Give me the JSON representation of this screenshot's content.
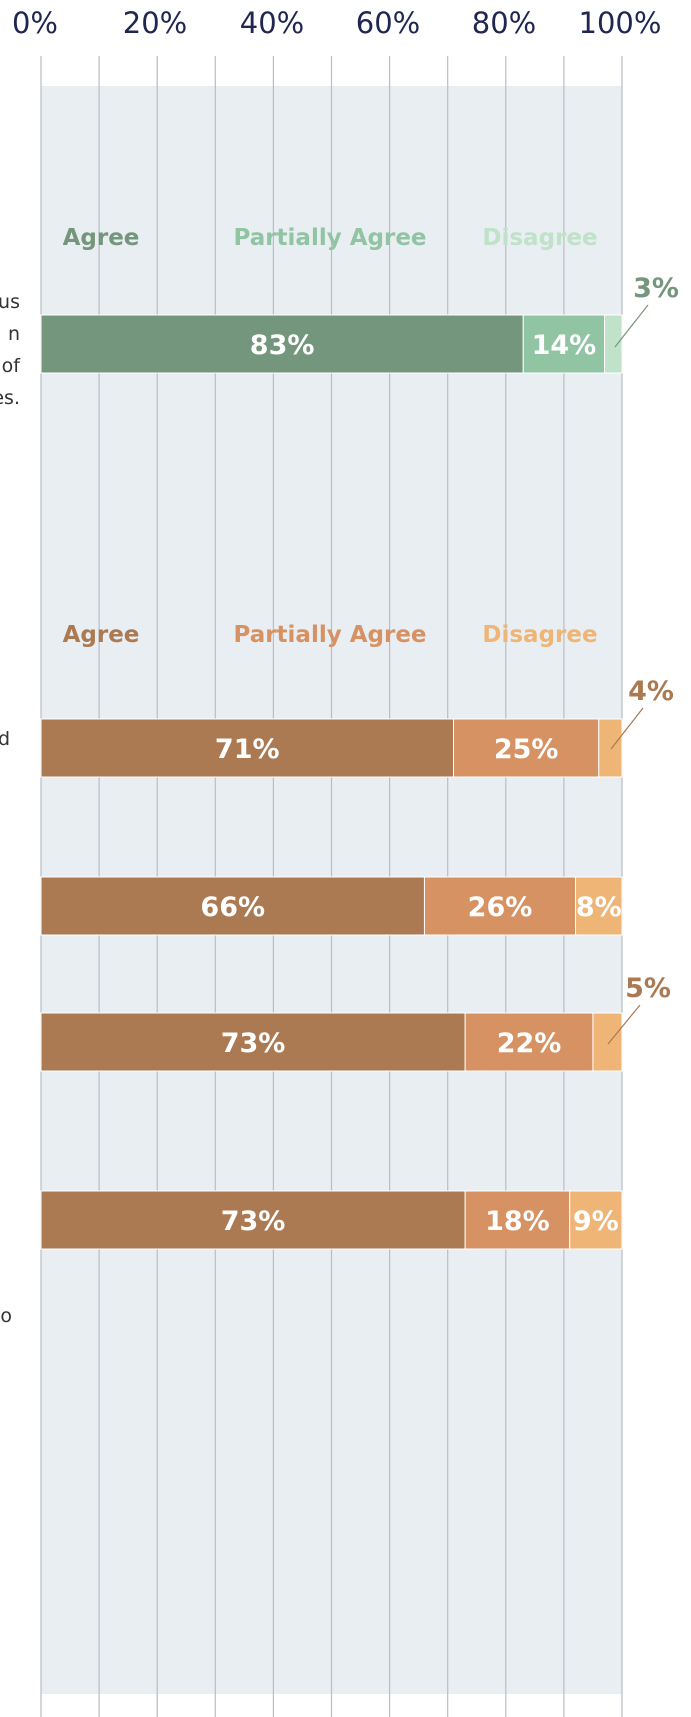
{
  "colors": {
    "panel_bg": "#e9eef2",
    "gridline": "#b8bec4",
    "axis_text": "#1f2650",
    "green_agree": "#74967c",
    "green_partial": "#90c4a2",
    "green_disagree": "#bfe2c8",
    "brown_agree": "#ab7a52",
    "brown_partial": "#d69263",
    "brown_disagree": "#efb577",
    "segment_text": "#ffffff"
  },
  "side_text_fragments": [
    {
      "id": "frag-1",
      "text": "us"
    },
    {
      "id": "frag-2",
      "text": "n"
    },
    {
      "id": "frag-3",
      "text": "of"
    },
    {
      "id": "frag-4",
      "text": "es."
    },
    {
      "id": "frag-5",
      "text": "d"
    },
    {
      "id": "frag-6",
      "text": "o"
    }
  ],
  "chart_data": {
    "type": "bar",
    "orientation": "horizontal",
    "stacked": true,
    "x_ticks": [
      "0%",
      "20%",
      "40%",
      "60%",
      "80%",
      "100%"
    ],
    "xlim": [
      0,
      100
    ],
    "grid": true,
    "title": "",
    "xlabel": "",
    "ylabel": "",
    "groups": [
      {
        "id": "group-1",
        "legend": [
          {
            "label": "Agree",
            "color": "#74967c"
          },
          {
            "label": "Partially Agree",
            "color": "#90c4a2"
          },
          {
            "label": "Disagree",
            "color": "#bfe2c8"
          }
        ],
        "rows": [
          {
            "values": [
              83,
              14,
              3
            ],
            "labels": [
              "83%",
              "14%",
              "3%"
            ]
          }
        ]
      },
      {
        "id": "group-2",
        "legend": [
          {
            "label": "Agree",
            "color": "#ab7a52"
          },
          {
            "label": "Partially Agree",
            "color": "#d69263"
          },
          {
            "label": "Disagree",
            "color": "#efb577"
          }
        ],
        "rows": [
          {
            "values": [
              71,
              25,
              4
            ],
            "labels": [
              "71%",
              "25%",
              "4%"
            ]
          },
          {
            "values": [
              66,
              26,
              8
            ],
            "labels": [
              "66%",
              "26%",
              "8%"
            ]
          },
          {
            "values": [
              73,
              22,
              5
            ],
            "labels": [
              "73%",
              "22%",
              "5%"
            ]
          },
          {
            "values": [
              73,
              18,
              9
            ],
            "labels": [
              "73%",
              "18%",
              "9%"
            ]
          }
        ]
      }
    ]
  }
}
